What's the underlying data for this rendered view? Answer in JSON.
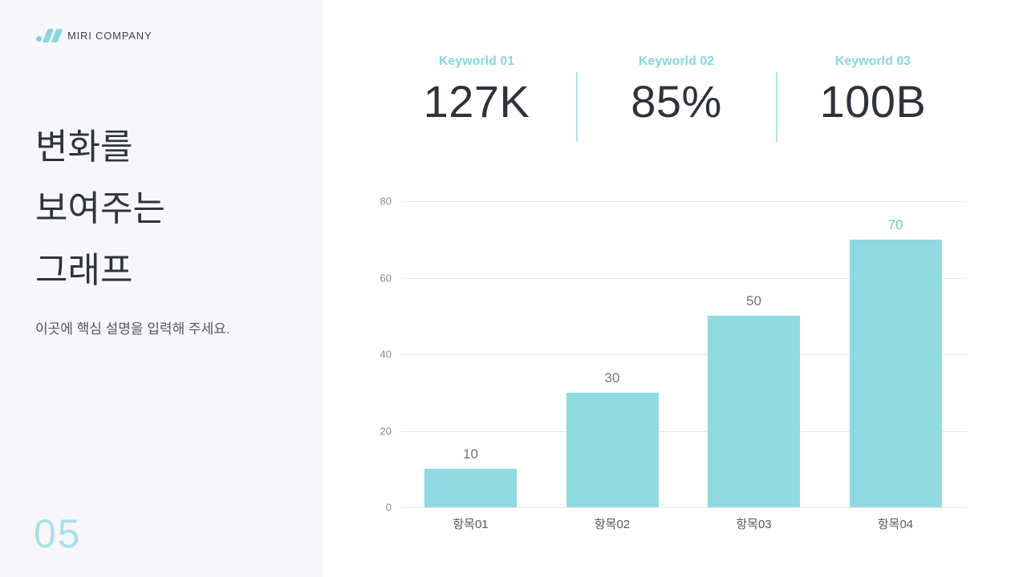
{
  "slide": {
    "logo_text": "MIRI COMPANY",
    "page_number": "05"
  },
  "sidebar": {
    "title_lines": [
      "변화를",
      "보여주는",
      "그래프"
    ],
    "subtitle": "이곳에 핵심 설명을 입력해 주세요."
  },
  "stats": [
    {
      "label": "Keyworld 01",
      "value": "127K"
    },
    {
      "label": "Keyworld 02",
      "value": "85%"
    },
    {
      "label": "Keyworld 03",
      "value": "100B"
    }
  ],
  "colors": {
    "sidebar_background": "#f7f7fb",
    "accent_teal": "#8ad7df",
    "stat_label_teal": "#87d8e1",
    "divider_teal": "#b0e4ea",
    "page_number_teal": "#a8dfe8",
    "dark_text": "#2f333b"
  },
  "chart_data": {
    "type": "bar",
    "categories": [
      "항목01",
      "항목02",
      "항목03",
      "항목04"
    ],
    "values": [
      10,
      30,
      50,
      70
    ],
    "value_labels": [
      "10",
      "30",
      "50",
      "70"
    ],
    "title": "",
    "xlabel": "",
    "ylabel": "",
    "ylim": [
      0,
      80
    ],
    "yticks": [
      0,
      20,
      40,
      60,
      80
    ],
    "grid": "horizontal",
    "legend": "none",
    "bar_color": "#90dae1",
    "value_label_color": "#707478",
    "highlight_index": 3,
    "highlight_label_color": "#5fc9d7"
  }
}
